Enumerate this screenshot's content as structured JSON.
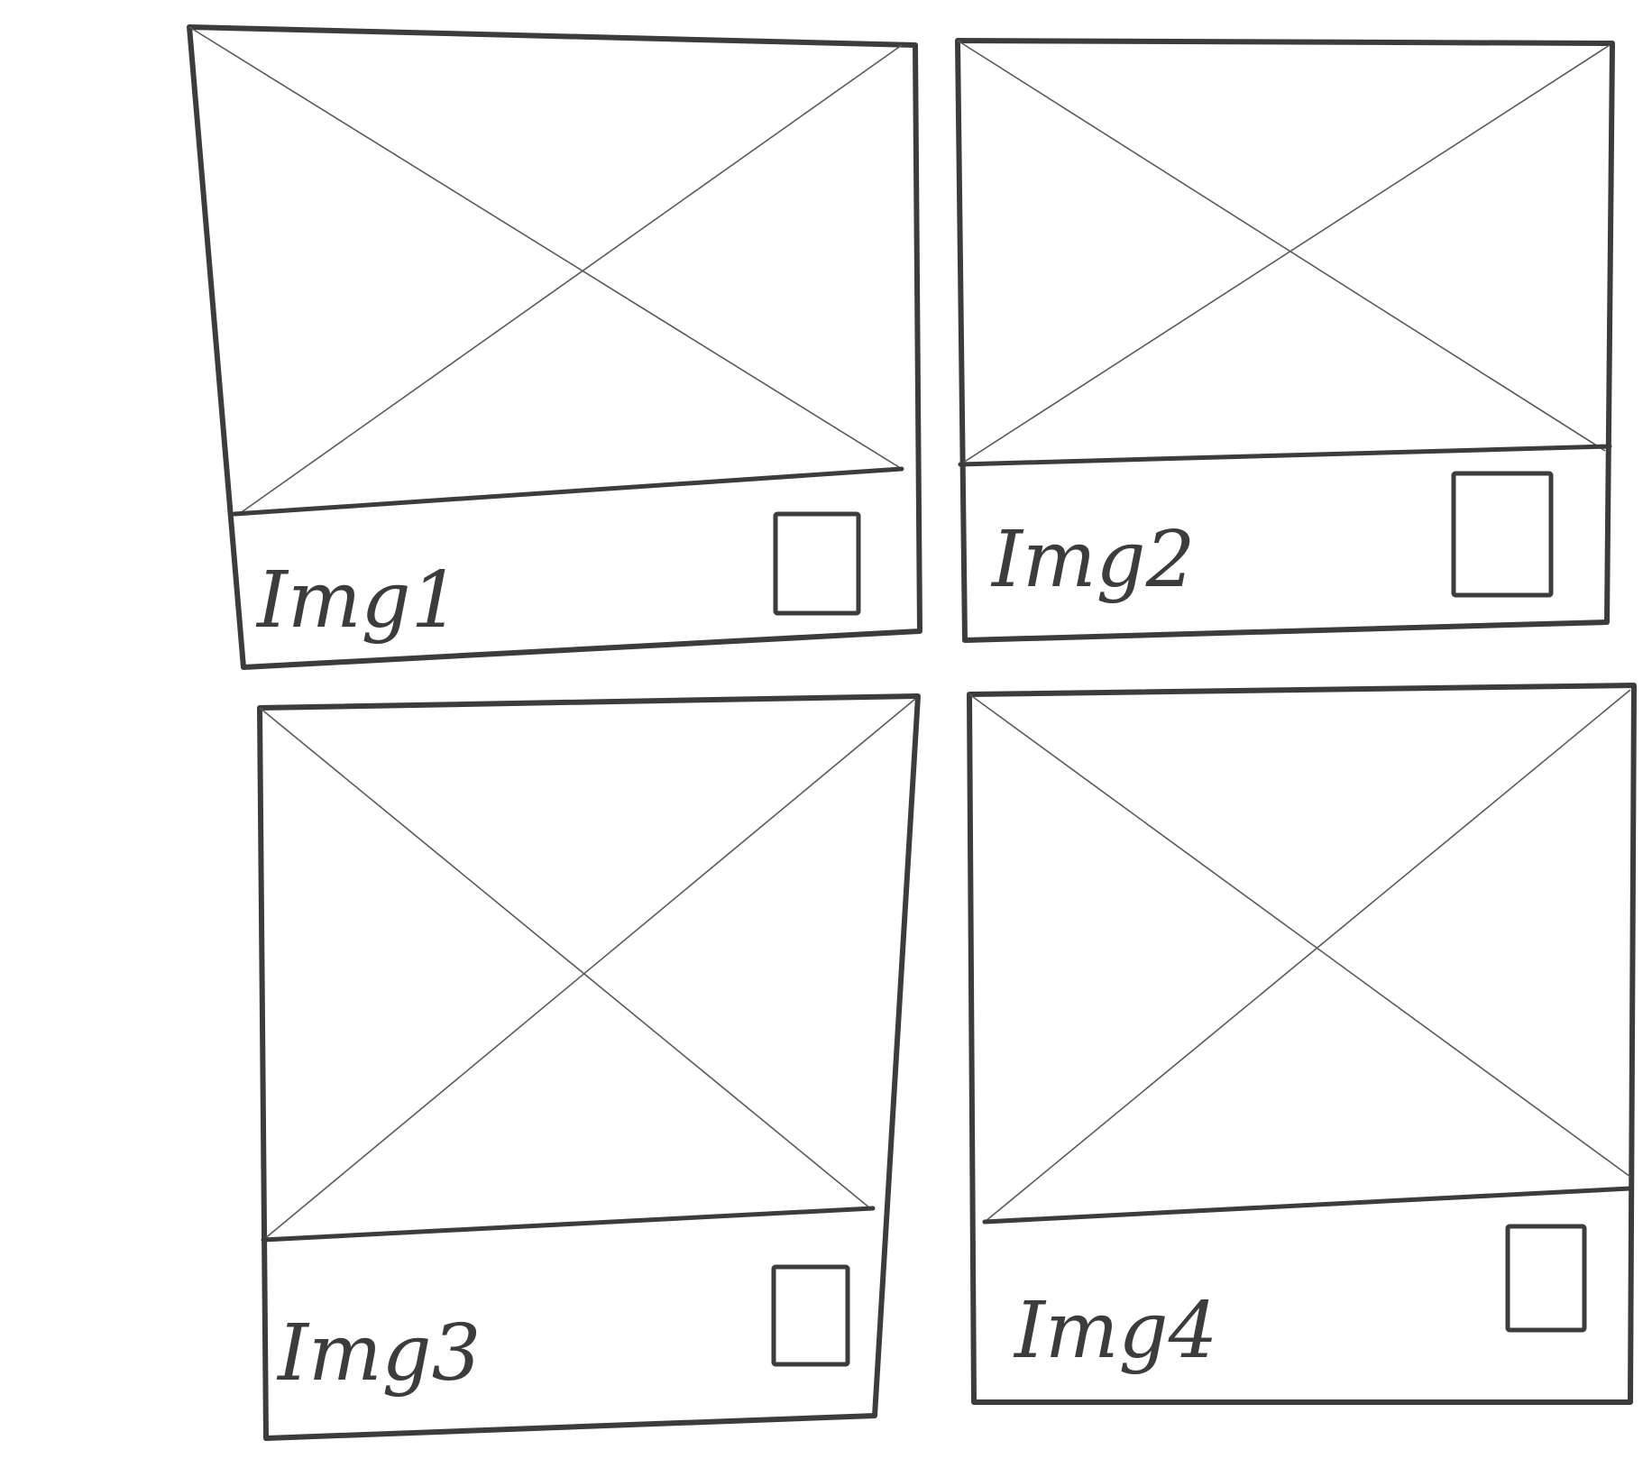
{
  "wireframe": {
    "cards": [
      {
        "label": "Img1"
      },
      {
        "label": "Img2"
      },
      {
        "label": "Img3"
      },
      {
        "label": "Img4"
      }
    ]
  }
}
